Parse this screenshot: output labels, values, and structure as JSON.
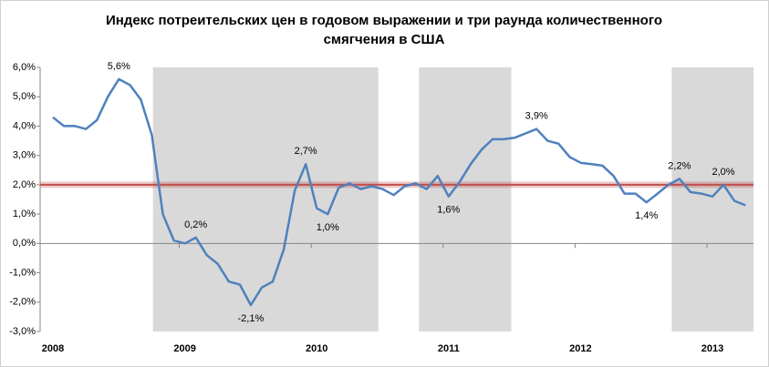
{
  "chart_data": {
    "type": "line",
    "title_lines": [
      "Индекс потреительских цен в годовом выражении и три раунда количественного",
      "смягчения в США"
    ],
    "categories": [
      "2008",
      null,
      null,
      null,
      null,
      null,
      null,
      null,
      null,
      null,
      null,
      null,
      "2009",
      null,
      null,
      null,
      null,
      null,
      null,
      null,
      null,
      null,
      null,
      null,
      "2010",
      null,
      null,
      null,
      null,
      null,
      null,
      null,
      null,
      null,
      null,
      null,
      "2011",
      null,
      null,
      null,
      null,
      null,
      null,
      null,
      null,
      null,
      null,
      null,
      "2012",
      null,
      null,
      null,
      null,
      null,
      null,
      null,
      null,
      null,
      null,
      null,
      "2013",
      null,
      null,
      null
    ],
    "series": [
      {
        "color": "#4f81bd",
        "values": [
          4.3,
          4.0,
          4.0,
          3.9,
          4.2,
          5.0,
          5.6,
          5.4,
          4.9,
          3.7,
          1.0,
          0.1,
          0.0,
          0.2,
          -0.4,
          -0.7,
          -1.3,
          -1.4,
          -2.1,
          -1.5,
          -1.3,
          -0.2,
          1.8,
          2.7,
          1.2,
          1.0,
          1.9,
          2.05,
          1.85,
          1.95,
          1.85,
          1.65,
          1.95,
          2.05,
          1.85,
          2.3,
          1.6,
          2.1,
          2.7,
          3.2,
          3.55,
          3.55,
          3.6,
          3.75,
          3.9,
          3.5,
          3.4,
          2.95,
          2.75,
          2.7,
          2.65,
          2.3,
          1.7,
          1.7,
          1.4,
          1.7,
          2.0,
          2.2,
          1.75,
          1.7,
          1.6,
          2.0,
          1.45,
          1.3
        ],
        "value_labels": [
          null,
          null,
          null,
          null,
          null,
          null,
          "5,6%",
          null,
          null,
          null,
          null,
          null,
          null,
          "0,2%",
          null,
          null,
          null,
          null,
          "-2,1%",
          null,
          null,
          null,
          null,
          "2,7%",
          null,
          "1,0%",
          null,
          null,
          null,
          null,
          null,
          null,
          null,
          null,
          null,
          null,
          "1,6%",
          null,
          null,
          null,
          null,
          null,
          null,
          null,
          "3,9%",
          null,
          null,
          null,
          null,
          null,
          null,
          null,
          null,
          null,
          "1,4%",
          null,
          null,
          "2,2%",
          null,
          null,
          null,
          "2,0%",
          null,
          null
        ]
      }
    ],
    "ylim": [
      -3,
      6
    ],
    "yticks": [
      {
        "value": -3,
        "label": "-3,0%"
      },
      {
        "value": -2,
        "label": "-2,0%"
      },
      {
        "value": -1,
        "label": "-1,0%"
      },
      {
        "value": 0,
        "label": "0,0%"
      },
      {
        "value": 1,
        "label": "1,0%"
      },
      {
        "value": 2,
        "label": "2,0%"
      },
      {
        "value": 3,
        "label": "3,0%"
      },
      {
        "value": 4,
        "label": "4,0%"
      },
      {
        "value": 5,
        "label": "5,0%"
      },
      {
        "value": 6,
        "label": "6,0%"
      }
    ],
    "reference_line": {
      "value": 2,
      "color": "#c0504d"
    },
    "shaded_periods": [
      [
        9.1,
        29.6
      ],
      [
        33.3,
        41.7
      ],
      [
        56.3,
        63.8
      ]
    ],
    "shade_color": "#d9d9d9"
  }
}
